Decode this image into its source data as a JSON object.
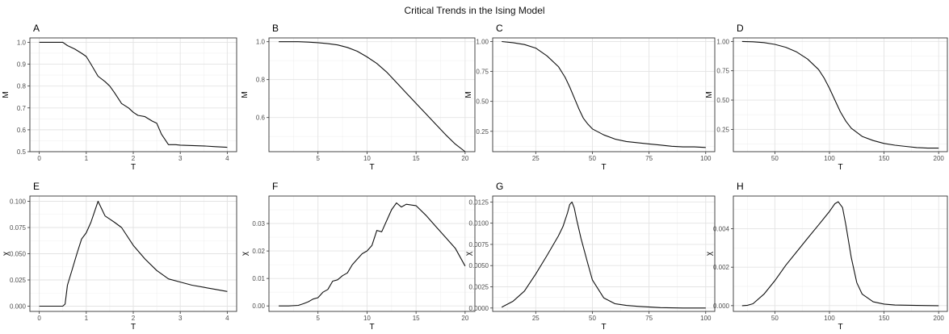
{
  "title": "Critical Trends in the Ising Model",
  "chart_data": [
    {
      "type": "line",
      "panel": "A",
      "xlabel": "T",
      "ylabel": "M",
      "xlim": [
        -0.2,
        4.2
      ],
      "ylim": [
        0.5,
        1.02
      ],
      "xticks": [
        0,
        1,
        2,
        3,
        4
      ],
      "yticks": [
        0.5,
        0.6,
        0.7,
        0.8,
        0.9,
        1.0
      ],
      "ytick_labels": [
        "0.5",
        "0.6",
        "0.7",
        "0.8",
        "0.9",
        "1.0"
      ],
      "grid": true,
      "x": [
        0,
        0.25,
        0.5,
        0.6,
        0.75,
        0.9,
        1.0,
        1.1,
        1.25,
        1.4,
        1.5,
        1.6,
        1.75,
        1.9,
        2.0,
        2.1,
        2.25,
        2.4,
        2.5,
        2.6,
        2.75,
        2.9,
        3.0,
        3.25,
        3.5,
        3.75,
        4.0
      ],
      "y": [
        1.0,
        1.0,
        1.0,
        0.985,
        0.97,
        0.95,
        0.935,
        0.9,
        0.845,
        0.82,
        0.8,
        0.77,
        0.72,
        0.7,
        0.68,
        0.666,
        0.66,
        0.64,
        0.63,
        0.58,
        0.532,
        0.532,
        0.53,
        0.528,
        0.526,
        0.523,
        0.52
      ]
    },
    {
      "type": "line",
      "panel": "B",
      "xlabel": "T",
      "ylabel": "M",
      "xlim": [
        0,
        21
      ],
      "ylim": [
        0.42,
        1.02
      ],
      "xticks": [
        5,
        10,
        15,
        20
      ],
      "yticks": [
        0.6,
        0.8,
        1.0
      ],
      "ytick_labels": [
        "0.6",
        "0.8",
        "1.0"
      ],
      "grid": true,
      "x": [
        1,
        2,
        3,
        4,
        5,
        6,
        7,
        8,
        9,
        10,
        11,
        12,
        13,
        14,
        15,
        16,
        17,
        18,
        19,
        20
      ],
      "y": [
        1.0,
        1.0,
        1.0,
        0.998,
        0.995,
        0.99,
        0.983,
        0.97,
        0.95,
        0.92,
        0.885,
        0.84,
        0.785,
        0.73,
        0.675,
        0.62,
        0.565,
        0.51,
        0.46,
        0.42
      ]
    },
    {
      "type": "line",
      "panel": "C",
      "xlabel": "T",
      "ylabel": "M",
      "xlim": [
        6,
        104
      ],
      "ylim": [
        0.08,
        1.03
      ],
      "xticks": [
        25,
        50,
        75,
        100
      ],
      "yticks": [
        0.25,
        0.5,
        0.75,
        1.0
      ],
      "ytick_labels": [
        "0.25",
        "0.50",
        "0.75",
        "1.00"
      ],
      "grid": true,
      "x": [
        10,
        15,
        20,
        25,
        30,
        35,
        38,
        40,
        42,
        44,
        46,
        48,
        50,
        55,
        60,
        65,
        70,
        75,
        80,
        85,
        90,
        95,
        100
      ],
      "y": [
        1.0,
        0.99,
        0.975,
        0.945,
        0.88,
        0.79,
        0.7,
        0.62,
        0.53,
        0.44,
        0.36,
        0.31,
        0.27,
        0.22,
        0.185,
        0.165,
        0.155,
        0.145,
        0.135,
        0.125,
        0.12,
        0.12,
        0.115
      ]
    },
    {
      "type": "line",
      "panel": "D",
      "xlabel": "T",
      "ylabel": "M",
      "xlim": [
        12,
        208
      ],
      "ylim": [
        0.06,
        1.03
      ],
      "xticks": [
        50,
        100,
        150,
        200
      ],
      "yticks": [
        0.25,
        0.5,
        0.75,
        1.0
      ],
      "ytick_labels": [
        "0.25",
        "0.50",
        "0.75",
        "1.00"
      ],
      "grid": true,
      "x": [
        20,
        30,
        40,
        50,
        60,
        70,
        80,
        90,
        95,
        100,
        105,
        110,
        115,
        120,
        130,
        140,
        150,
        160,
        170,
        180,
        190,
        200
      ],
      "y": [
        1.0,
        0.997,
        0.99,
        0.975,
        0.95,
        0.91,
        0.85,
        0.76,
        0.69,
        0.6,
        0.5,
        0.4,
        0.32,
        0.26,
        0.19,
        0.155,
        0.13,
        0.115,
        0.105,
        0.095,
        0.09,
        0.09
      ]
    },
    {
      "type": "line",
      "panel": "E",
      "xlabel": "T",
      "ylabel": "χ",
      "xlim": [
        -0.2,
        4.2
      ],
      "ylim": [
        -0.005,
        0.105
      ],
      "xticks": [
        0,
        1,
        2,
        3,
        4
      ],
      "yticks": [
        0.0,
        0.025,
        0.05,
        0.075,
        0.1
      ],
      "ytick_labels": [
        "0.000",
        "0.025",
        "0.050",
        "0.075",
        "0.100"
      ],
      "grid": true,
      "x": [
        0,
        0.25,
        0.5,
        0.55,
        0.6,
        0.7,
        0.8,
        0.9,
        1.0,
        1.1,
        1.25,
        1.4,
        1.5,
        1.6,
        1.75,
        2.0,
        2.25,
        2.5,
        2.75,
        3.0,
        3.25,
        3.5,
        3.75,
        4.0
      ],
      "y": [
        0.0,
        0.0,
        0.0,
        0.002,
        0.02,
        0.035,
        0.05,
        0.064,
        0.07,
        0.08,
        0.1,
        0.086,
        0.083,
        0.08,
        0.075,
        0.058,
        0.045,
        0.034,
        0.026,
        0.023,
        0.02,
        0.018,
        0.016,
        0.014
      ]
    },
    {
      "type": "line",
      "panel": "F",
      "xlabel": "T",
      "ylabel": "χ",
      "xlim": [
        0,
        21
      ],
      "ylim": [
        -0.002,
        0.04
      ],
      "xticks": [
        5,
        10,
        15,
        20
      ],
      "yticks": [
        0.0,
        0.01,
        0.02,
        0.03
      ],
      "ytick_labels": [
        "0.00",
        "0.01",
        "0.02",
        "0.03"
      ],
      "grid": true,
      "x": [
        1,
        2,
        3,
        3.5,
        4,
        4.5,
        5,
        5.5,
        6,
        6.5,
        7,
        7.5,
        8,
        8.5,
        9,
        9.5,
        10,
        10.5,
        11,
        11.5,
        12,
        12.5,
        13,
        13.5,
        14,
        15,
        16,
        17,
        18,
        19,
        20
      ],
      "y": [
        0.0,
        0.0,
        0.0002,
        0.0008,
        0.0015,
        0.0025,
        0.003,
        0.005,
        0.006,
        0.009,
        0.0095,
        0.011,
        0.012,
        0.015,
        0.017,
        0.019,
        0.02,
        0.022,
        0.0275,
        0.027,
        0.031,
        0.035,
        0.0375,
        0.036,
        0.037,
        0.0365,
        0.033,
        0.029,
        0.025,
        0.021,
        0.0145
      ]
    },
    {
      "type": "line",
      "panel": "G",
      "xlabel": "T",
      "ylabel": "χ",
      "xlim": [
        6,
        104
      ],
      "ylim": [
        -0.0004,
        0.0132
      ],
      "xticks": [
        25,
        50,
        75,
        100
      ],
      "yticks": [
        0.0,
        0.0025,
        0.005,
        0.0075,
        0.01,
        0.0125
      ],
      "ytick_labels": [
        "0.0000",
        "0.0025",
        "0.0050",
        "0.0075",
        "0.0100",
        "0.0125"
      ],
      "grid": true,
      "x": [
        10,
        15,
        20,
        25,
        30,
        35,
        37,
        39,
        40,
        41,
        42,
        43,
        45,
        48,
        50,
        55,
        60,
        65,
        70,
        80,
        90,
        100
      ],
      "y": [
        0.0001,
        0.0008,
        0.002,
        0.004,
        0.0062,
        0.0085,
        0.0096,
        0.0112,
        0.0122,
        0.0125,
        0.0118,
        0.0105,
        0.0082,
        0.0052,
        0.0033,
        0.0012,
        0.0005,
        0.0003,
        0.0002,
        5e-05,
        0.0,
        0.0
      ]
    },
    {
      "type": "line",
      "panel": "H",
      "xlabel": "T",
      "ylabel": "χ",
      "xlim": [
        12,
        208
      ],
      "ylim": [
        -0.0003,
        0.0057
      ],
      "xticks": [
        50,
        100,
        150,
        200
      ],
      "yticks": [
        0.0,
        0.002,
        0.004
      ],
      "ytick_labels": [
        "0.000",
        "0.002",
        "0.004"
      ],
      "grid": true,
      "x": [
        20,
        25,
        30,
        40,
        50,
        60,
        70,
        80,
        90,
        100,
        105,
        108,
        112,
        115,
        120,
        125,
        130,
        140,
        150,
        160,
        180,
        200
      ],
      "y": [
        0.0,
        2e-05,
        0.0001,
        0.0006,
        0.0013,
        0.0021,
        0.0028,
        0.0035,
        0.0042,
        0.0049,
        0.0053,
        0.0054,
        0.0051,
        0.0042,
        0.0025,
        0.0012,
        0.0006,
        0.0002,
        8e-05,
        3e-05,
        1e-05,
        0.0
      ]
    }
  ]
}
